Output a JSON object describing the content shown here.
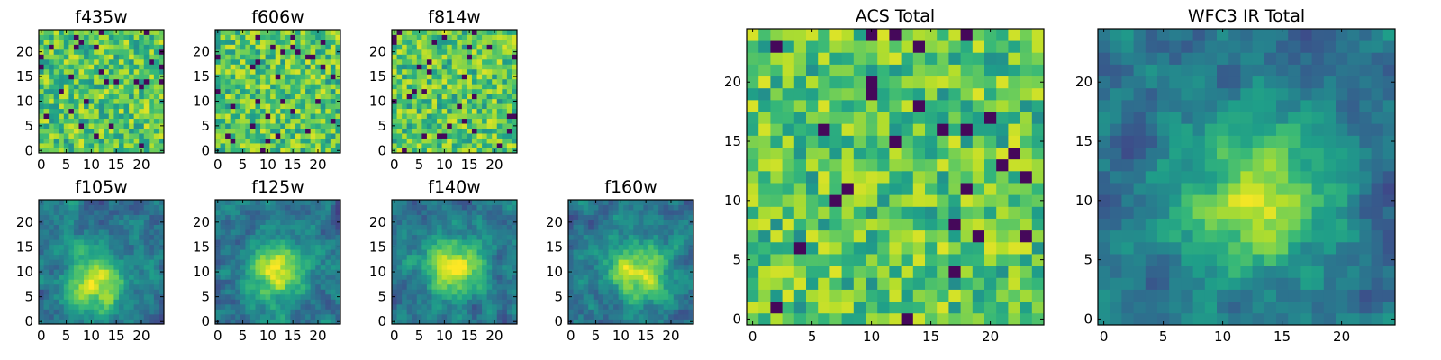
{
  "chart_data": [
    {
      "type": "heatmap",
      "id": "f435w",
      "title": "f435w",
      "size": 25,
      "xticks": [
        0,
        5,
        10,
        15,
        20
      ],
      "yticks": [
        0,
        5,
        10,
        15,
        20
      ],
      "colormap": "viridis",
      "structure": "noise",
      "seed": 11,
      "center": [
        12,
        12
      ]
    },
    {
      "type": "heatmap",
      "id": "f606w",
      "title": "f606w",
      "size": 25,
      "xticks": [
        0,
        5,
        10,
        15,
        20
      ],
      "yticks": [
        0,
        5,
        10,
        15,
        20
      ],
      "colormap": "viridis",
      "structure": "noise",
      "seed": 23,
      "center": [
        12,
        12
      ]
    },
    {
      "type": "heatmap",
      "id": "f814w",
      "title": "f814w",
      "size": 25,
      "xticks": [
        0,
        5,
        10,
        15,
        20
      ],
      "yticks": [
        0,
        5,
        10,
        15,
        20
      ],
      "colormap": "viridis",
      "structure": "noise",
      "seed": 37,
      "center": [
        12,
        12
      ]
    },
    {
      "type": "heatmap",
      "id": "f105w",
      "title": "f105w",
      "size": 25,
      "xticks": [
        0,
        5,
        10,
        15,
        20
      ],
      "yticks": [
        0,
        5,
        10,
        15,
        20
      ],
      "colormap": "viridis",
      "structure": "source",
      "seed": 41,
      "center": [
        11,
        8
      ]
    },
    {
      "type": "heatmap",
      "id": "f125w",
      "title": "f125w",
      "size": 25,
      "xticks": [
        0,
        5,
        10,
        15,
        20
      ],
      "yticks": [
        0,
        5,
        10,
        15,
        20
      ],
      "colormap": "viridis",
      "structure": "source",
      "seed": 53,
      "center": [
        12,
        10
      ]
    },
    {
      "type": "heatmap",
      "id": "f140w",
      "title": "f140w",
      "size": 25,
      "xticks": [
        0,
        5,
        10,
        15,
        20
      ],
      "yticks": [
        0,
        5,
        10,
        15,
        20
      ],
      "colormap": "viridis",
      "structure": "source",
      "seed": 67,
      "center": [
        12,
        11
      ]
    },
    {
      "type": "heatmap",
      "id": "f160w",
      "title": "f160w",
      "size": 25,
      "xticks": [
        0,
        5,
        10,
        15,
        20
      ],
      "yticks": [
        0,
        5,
        10,
        15,
        20
      ],
      "colormap": "viridis",
      "structure": "source",
      "seed": 79,
      "center": [
        13,
        10
      ]
    },
    {
      "type": "heatmap",
      "id": "acs_total",
      "title": "ACS Total",
      "size": 25,
      "xticks": [
        0,
        5,
        10,
        15,
        20
      ],
      "yticks": [
        0,
        5,
        10,
        15,
        20
      ],
      "colormap": "viridis",
      "structure": "noise",
      "seed": 97,
      "center": [
        12,
        12
      ]
    },
    {
      "type": "heatmap",
      "id": "wfc3_ir_total",
      "title": "WFC3 IR Total",
      "size": 25,
      "xticks": [
        0,
        5,
        10,
        15,
        20
      ],
      "yticks": [
        0,
        5,
        10,
        15,
        20
      ],
      "colormap": "viridis",
      "structure": "source",
      "seed": 113,
      "center": [
        13,
        10
      ]
    }
  ]
}
